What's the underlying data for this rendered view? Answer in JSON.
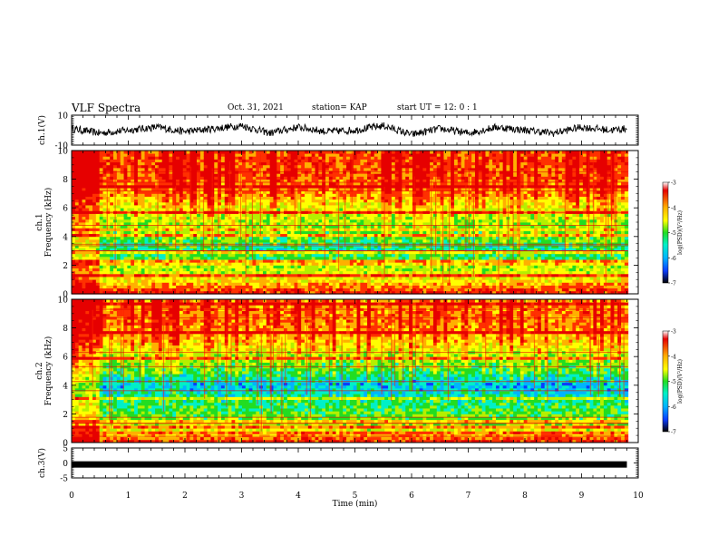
{
  "header": {
    "title": "VLF Spectra",
    "date": "Oct. 31, 2021",
    "station": "station= KAP",
    "start": "start  UT =  12: 0  : 1"
  },
  "colors": {
    "spectrum_scale": [
      "#2a0a8a",
      "#0a3cff",
      "#00b4ff",
      "#00f0c8",
      "#22dd22",
      "#b4f000",
      "#ffff00",
      "#ffb000",
      "#ff3000",
      "#e60000"
    ],
    "waveform": "#000000",
    "axis": "#000000"
  },
  "chart_data": [
    {
      "type": "line",
      "panel": "ch1-waveform",
      "ylabel": "ch.1(V)",
      "ylim": [
        -10,
        10
      ],
      "yticks": [
        10,
        -10
      ],
      "xlim": [
        0,
        10
      ],
      "series": [
        {
          "x": [
            0,
            0.5,
            1,
            1.5,
            2,
            2.5,
            3,
            3.5,
            4,
            4.5,
            5,
            5.5,
            6,
            6.5,
            7,
            7.5,
            8,
            8.5,
            9,
            9.5,
            9.8
          ],
          "values": [
            1,
            -2,
            0,
            2,
            -1,
            1,
            3,
            -2,
            2,
            -1,
            0,
            3,
            -3,
            1,
            -2,
            2,
            0,
            -2,
            2,
            0,
            1
          ]
        }
      ]
    },
    {
      "type": "heatmap",
      "panel": "ch1-spectrogram",
      "ylabel": "ch.1\nFrequency (kHz)",
      "ylim": [
        0,
        10
      ],
      "yticks": [
        0,
        2,
        4,
        6,
        8,
        10
      ],
      "xlim": [
        0,
        10
      ],
      "colorbar": {
        "label": "log(PSD)(V²/Hz)",
        "ticks": [
          -3,
          -4,
          -5,
          -6,
          -7
        ],
        "range": [
          -7,
          -3
        ]
      },
      "mean_log_psd_by_freq": {
        "freq_kHz": [
          0,
          1,
          2,
          3,
          4,
          5,
          6,
          7,
          8,
          9,
          10
        ],
        "value": [
          -3.3,
          -4.4,
          -4.8,
          -5.6,
          -5.1,
          -4.9,
          -4.6,
          -4.0,
          -3.8,
          -3.7,
          -3.8
        ]
      }
    },
    {
      "type": "heatmap",
      "panel": "ch2-spectrogram",
      "ylabel": "ch.2\nFrequency (kHz)",
      "ylim": [
        0,
        10
      ],
      "yticks": [
        0,
        2,
        4,
        6,
        8,
        10
      ],
      "xlim": [
        0,
        10
      ],
      "colorbar": {
        "label": "log(PSD)(V²/Hz)",
        "ticks": [
          -3,
          -4,
          -5,
          -6,
          -7
        ],
        "range": [
          -7,
          -3
        ]
      },
      "mean_log_psd_by_freq": {
        "freq_kHz": [
          0,
          1,
          2,
          3,
          4,
          5,
          6,
          7,
          8,
          9,
          10
        ],
        "value": [
          -3.3,
          -4.7,
          -5.1,
          -5.5,
          -6.0,
          -5.3,
          -4.9,
          -4.3,
          -4.0,
          -3.9,
          -4.0
        ]
      }
    },
    {
      "type": "line",
      "panel": "ch3-waveform",
      "ylabel": "ch.3(V)",
      "ylim": [
        -5,
        5
      ],
      "yticks": [
        5,
        0,
        -5
      ],
      "xlim": [
        0,
        10
      ],
      "xticks": [
        0,
        1,
        2,
        3,
        4,
        5,
        6,
        7,
        8,
        9,
        10
      ],
      "xlabel": "Time (min)",
      "series": [
        {
          "x": [
            0,
            9.8
          ],
          "values": [
            -0.5,
            -0.5
          ]
        }
      ]
    }
  ]
}
